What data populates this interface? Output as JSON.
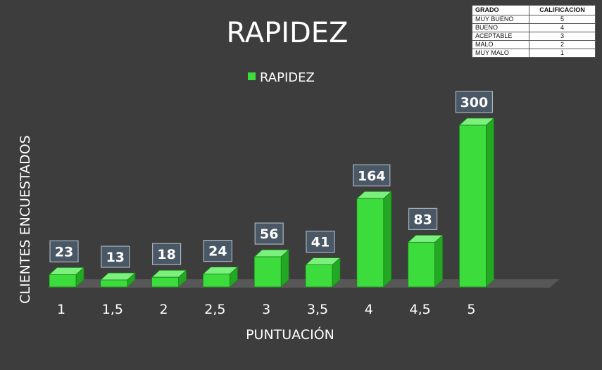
{
  "chart_data": {
    "type": "bar",
    "title": "RAPIDEZ",
    "xlabel": "PUNTUACIÓN",
    "ylabel": "CLIENTES ENCUESTADOS",
    "categories": [
      "1",
      "1,5",
      "2",
      "2,5",
      "3",
      "3,5",
      "4",
      "4,5",
      "5"
    ],
    "series": [
      {
        "name": "RAPIDEZ",
        "values": [
          23,
          13,
          18,
          24,
          56,
          41,
          164,
          83,
          300
        ]
      }
    ],
    "ylim": [
      0,
      300
    ],
    "grid": false,
    "legend": "top-center",
    "bar_color": "#3ddc3d"
  },
  "rating_table": {
    "headers": [
      "GRADO",
      "CALIFICACION"
    ],
    "rows": [
      [
        "MUY BUENO",
        "5"
      ],
      [
        "BUENO",
        "4"
      ],
      [
        "ACEPTABLE",
        "3"
      ],
      [
        "MALO",
        "2"
      ],
      [
        "MUY MALO",
        "1"
      ]
    ]
  },
  "colors": {
    "background": "#3d3d3d",
    "bar": "#3ddc3d",
    "label_box": "#4a5866",
    "text": "#ffffff"
  }
}
